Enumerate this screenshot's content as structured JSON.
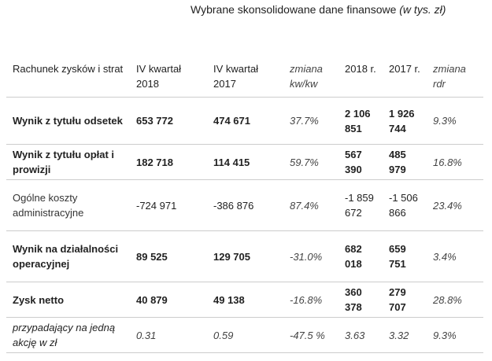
{
  "title": {
    "main": "Wybrane skonsolidowane dane finansowe",
    "unit": "(w tys. zł)"
  },
  "header": {
    "col0": "Rachunek zysków i strat",
    "col1": "IV kwartał 2018",
    "col2": "IV kwartał 2017",
    "col3": "zmiana kw/kw",
    "col4": "2018 r.",
    "col5": "2017 r.",
    "col6": "zmiana rdr"
  },
  "rows": [
    {
      "label": "Wynik z tytułu odsetek",
      "q2018": "653 772",
      "q2017": "474 671",
      "qoq": "37.7%",
      "y2018": "2 106 851",
      "y2017": "1 926 744",
      "yoy": "9.3%"
    },
    {
      "label": "Wynik z tytułu opłat i prowizji",
      "q2018": "182 718",
      "q2017": "114 415",
      "qoq": "59.7%",
      "y2018": "567 390",
      "y2017": "485 979",
      "yoy": "16.8%"
    },
    {
      "label": "Ogólne koszty administracyjne",
      "q2018": "-724 971",
      "q2017": "-386 876",
      "qoq": "87.4%",
      "y2018": "-1 859 672",
      "y2017": "-1 506 866",
      "yoy": "23.4%"
    },
    {
      "label": "Wynik na działalności operacyjnej",
      "q2018": "89 525",
      "q2017": "129 705",
      "qoq": "-31.0%",
      "y2018": "682 018",
      "y2017": "659 751",
      "yoy": "3.4%"
    },
    {
      "label": "Zysk netto",
      "q2018": "40 879",
      "q2017": "49 138",
      "qoq": "-16.8%",
      "y2018": "360 378",
      "y2017": "279 707",
      "yoy": "28.8%"
    },
    {
      "label": "przypadający na jedną akcję w zł",
      "q2018": "0.31",
      "q2017": "0.59",
      "qoq": "-47.5 %",
      "y2018": "3.63",
      "y2017": "3.32",
      "yoy": "9.3%"
    }
  ]
}
